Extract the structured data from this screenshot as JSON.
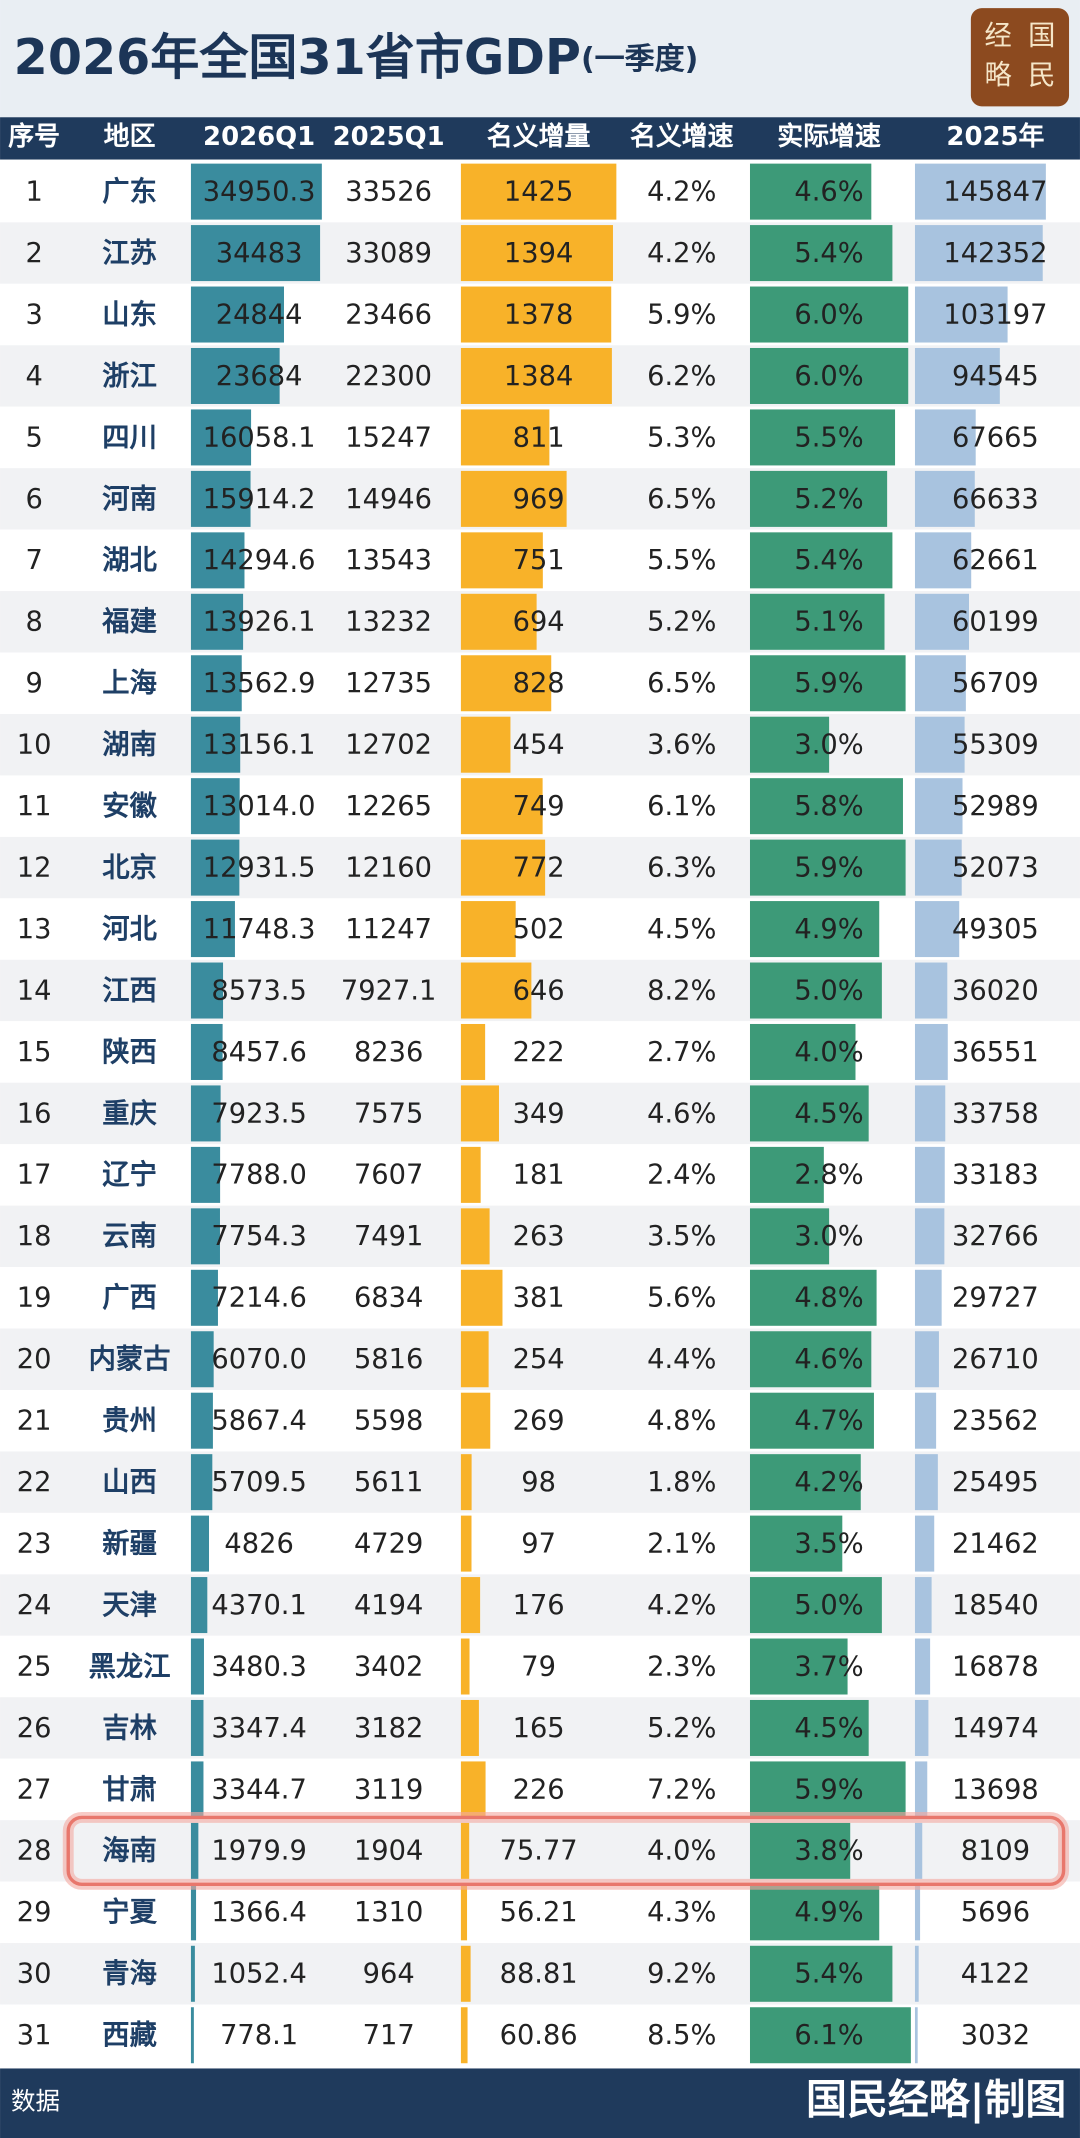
{
  "header": {
    "title": "2026年全国31省市GDP",
    "subtitle": "(一季度)",
    "logo": [
      "经",
      "国",
      "略",
      "民"
    ]
  },
  "table": {
    "columns": [
      "序号",
      "地区",
      "2026Q1",
      "2025Q1",
      "名义增量",
      "名义增速",
      "实际增速",
      "2025年"
    ],
    "rows": [
      [
        "1",
        "广东",
        "34950.3",
        "33526",
        "1425",
        "4.2%",
        "4.6%",
        "145847"
      ],
      [
        "2",
        "江苏",
        "34483",
        "33089",
        "1394",
        "4.2%",
        "5.4%",
        "142352"
      ],
      [
        "3",
        "山东",
        "24844",
        "23466",
        "1378",
        "5.9%",
        "6.0%",
        "103197"
      ],
      [
        "4",
        "浙江",
        "23684",
        "22300",
        "1384",
        "6.2%",
        "6.0%",
        "94545"
      ],
      [
        "5",
        "四川",
        "16058.1",
        "15247",
        "811",
        "5.3%",
        "5.5%",
        "67665"
      ],
      [
        "6",
        "河南",
        "15914.2",
        "14946",
        "969",
        "6.5%",
        "5.2%",
        "66633"
      ],
      [
        "7",
        "湖北",
        "14294.6",
        "13543",
        "751",
        "5.5%",
        "5.4%",
        "62661"
      ],
      [
        "8",
        "福建",
        "13926.1",
        "13232",
        "694",
        "5.2%",
        "5.1%",
        "60199"
      ],
      [
        "9",
        "上海",
        "13562.9",
        "12735",
        "828",
        "6.5%",
        "5.9%",
        "56709"
      ],
      [
        "10",
        "湖南",
        "13156.1",
        "12702",
        "454",
        "3.6%",
        "3.0%",
        "55309"
      ],
      [
        "11",
        "安徽",
        "13014.0",
        "12265",
        "749",
        "6.1%",
        "5.8%",
        "52989"
      ],
      [
        "12",
        "北京",
        "12931.5",
        "12160",
        "772",
        "6.3%",
        "5.9%",
        "52073"
      ],
      [
        "13",
        "河北",
        "11748.3",
        "11247",
        "502",
        "4.5%",
        "4.9%",
        "49305"
      ],
      [
        "14",
        "江西",
        "8573.5",
        "7927.1",
        "646",
        "8.2%",
        "5.0%",
        "36020"
      ],
      [
        "15",
        "陕西",
        "8457.6",
        "8236",
        "222",
        "2.7%",
        "4.0%",
        "36551"
      ],
      [
        "16",
        "重庆",
        "7923.5",
        "7575",
        "349",
        "4.6%",
        "4.5%",
        "33758"
      ],
      [
        "17",
        "辽宁",
        "7788.0",
        "7607",
        "181",
        "2.4%",
        "2.8%",
        "33183"
      ],
      [
        "18",
        "云南",
        "7754.3",
        "7491",
        "263",
        "3.5%",
        "3.0%",
        "32766"
      ],
      [
        "19",
        "广西",
        "7214.6",
        "6834",
        "381",
        "5.6%",
        "4.8%",
        "29727"
      ],
      [
        "20",
        "内蒙古",
        "6070.0",
        "5816",
        "254",
        "4.4%",
        "4.6%",
        "26710"
      ],
      [
        "21",
        "贵州",
        "5867.4",
        "5598",
        "269",
        "4.8%",
        "4.7%",
        "23562"
      ],
      [
        "22",
        "山西",
        "5709.5",
        "5611",
        "98",
        "1.8%",
        "4.2%",
        "25495"
      ],
      [
        "23",
        "新疆",
        "4826",
        "4729",
        "97",
        "2.1%",
        "3.5%",
        "21462"
      ],
      [
        "24",
        "天津",
        "4370.1",
        "4194",
        "176",
        "4.2%",
        "5.0%",
        "18540"
      ],
      [
        "25",
        "黑龙江",
        "3480.3",
        "3402",
        "79",
        "2.3%",
        "3.7%",
        "16878"
      ],
      [
        "26",
        "吉林",
        "3347.4",
        "3182",
        "165",
        "5.2%",
        "4.5%",
        "14974"
      ],
      [
        "27",
        "甘肃",
        "3344.7",
        "3119",
        "226",
        "7.2%",
        "5.9%",
        "13698"
      ],
      [
        "28",
        "海南",
        "1979.9",
        "1904",
        "75.77",
        "4.0%",
        "3.8%",
        "8109"
      ],
      [
        "29",
        "宁夏",
        "1366.4",
        "1310",
        "56.21",
        "4.3%",
        "4.9%",
        "5696"
      ],
      [
        "30",
        "青海",
        "1052.4",
        "964",
        "88.81",
        "9.2%",
        "5.4%",
        "4122"
      ],
      [
        "31",
        "西藏",
        "778.1",
        "717",
        "60.86",
        "8.5%",
        "6.1%",
        "3032"
      ]
    ]
  },
  "footer": {
    "source": "数据",
    "credit": "国民经略|制图"
  }
}
